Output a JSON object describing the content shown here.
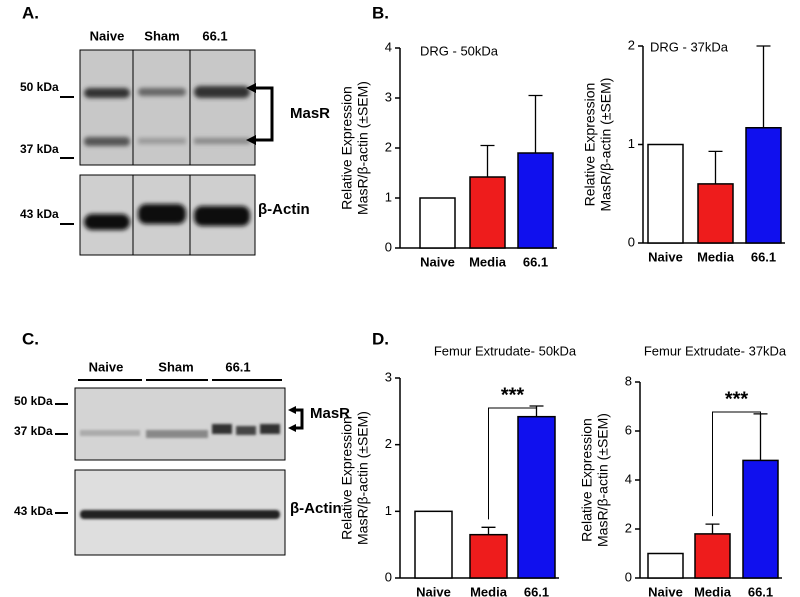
{
  "panels": [
    "A.",
    "B.",
    "C.",
    "D."
  ],
  "blots": [
    {
      "lanes": [
        "Naive",
        "Sham",
        "66.1"
      ],
      "markers": [
        "50 kDa",
        "37 kDa",
        "43 kDa"
      ],
      "targets": [
        "MasR",
        "β-Actin"
      ]
    },
    {
      "lanes": [
        "Naive",
        "Sham",
        "66.1"
      ],
      "markers": [
        "50 kDa",
        "37 kDa",
        "43 kDa"
      ],
      "targets": [
        "MasR",
        "β-Actin"
      ]
    }
  ],
  "chart_data": [
    {
      "type": "bar",
      "title": "DRG - 50kDa",
      "y_label": [
        "Relative Expression",
        "MasR/β-actin (±SEM)"
      ],
      "categories": [
        "Naive",
        "Media",
        "66.1"
      ],
      "values": [
        1.0,
        1.42,
        1.9
      ],
      "errors": [
        null,
        0.63,
        1.15
      ],
      "colors": [
        "#ffffff",
        "#ee1c1c",
        "#1010ee"
      ],
      "ylim": [
        0,
        4
      ],
      "yticks": [
        0,
        1,
        2,
        3,
        4
      ]
    },
    {
      "type": "bar",
      "title": "DRG - 37kDa",
      "y_label": [
        "Relative Expression",
        "MasR/β-actin (±SEM)"
      ],
      "categories": [
        "Naive",
        "Media",
        "66.1"
      ],
      "values": [
        1.0,
        0.6,
        1.17
      ],
      "errors": [
        null,
        0.33,
        0.83
      ],
      "colors": [
        "#ffffff",
        "#ee1c1c",
        "#1010ee"
      ],
      "ylim": [
        0,
        2
      ],
      "yticks": [
        0,
        1,
        2
      ]
    },
    {
      "type": "bar",
      "title": "Femur Extrudate- 50kDa",
      "y_label": [
        "Relative Expression",
        "MasR/β-actin (±SEM)"
      ],
      "categories": [
        "Naive",
        "Media",
        "66.1"
      ],
      "values": [
        1.0,
        0.65,
        2.42
      ],
      "errors": [
        null,
        0.11,
        0.16
      ],
      "colors": [
        "#ffffff",
        "#ee1c1c",
        "#1010ee"
      ],
      "ylim": [
        0,
        3
      ],
      "yticks": [
        0,
        1,
        2,
        3
      ],
      "annotation": "***"
    },
    {
      "type": "bar",
      "title": "Femur Extrudate- 37kDa",
      "y_label": [
        "Relative Expression",
        "MasR/β-actin (±SEM)"
      ],
      "categories": [
        "Naive",
        "Media",
        "66.1"
      ],
      "values": [
        1.0,
        1.8,
        4.8
      ],
      "errors": [
        null,
        0.4,
        1.9
      ],
      "colors": [
        "#ffffff",
        "#ee1c1c",
        "#1010ee"
      ],
      "ylim": [
        0,
        8
      ],
      "yticks": [
        0,
        2,
        4,
        6,
        8
      ],
      "annotation": "***"
    }
  ]
}
